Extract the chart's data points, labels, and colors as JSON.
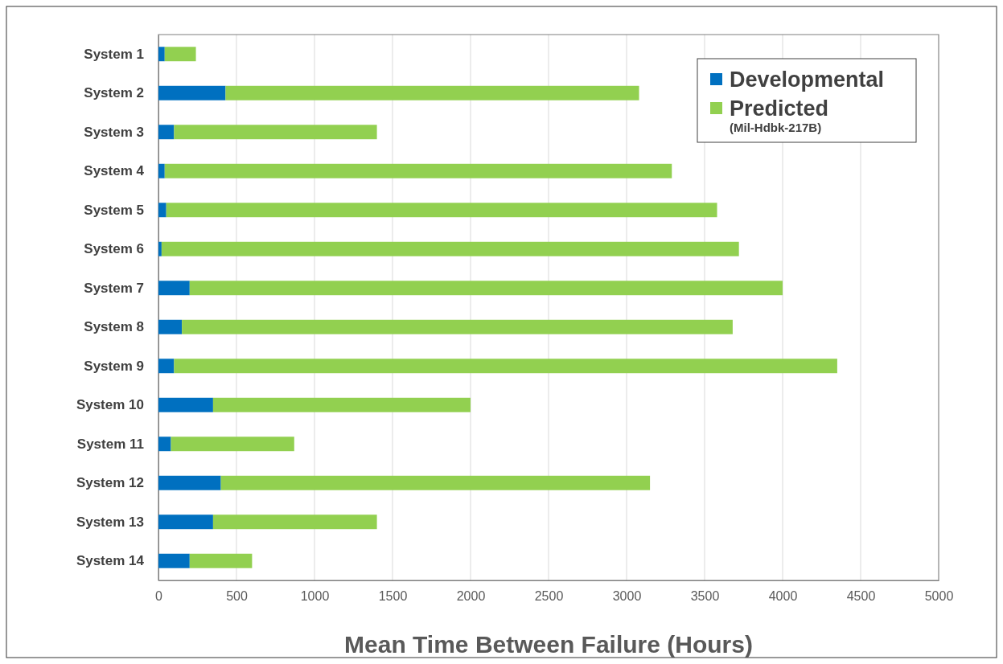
{
  "chart_data": {
    "type": "bar",
    "orientation": "horizontal",
    "stacked": true,
    "xlabel": "Mean Time Between Failure (Hours)",
    "categories": [
      "System 1",
      "System 2",
      "System 3",
      "System 4",
      "System 5",
      "System 6",
      "System 7",
      "System 8",
      "System 9",
      "System 10",
      "System 11",
      "System 12",
      "System 13",
      "System 14"
    ],
    "series": [
      {
        "name": "Developmental",
        "color": "#0070c0",
        "values": [
          40,
          430,
          100,
          40,
          50,
          20,
          200,
          150,
          100,
          350,
          80,
          400,
          350,
          200
        ]
      },
      {
        "name": "Predicted\n(Mil-Hdbk-217B)",
        "color": "#92d050",
        "values": [
          200,
          2650,
          1300,
          3250,
          3530,
          3700,
          3800,
          3530,
          4250,
          1650,
          790,
          2750,
          1050,
          400
        ]
      }
    ],
    "xlim": [
      0,
      5000
    ],
    "xticks": [
      0,
      500,
      1000,
      1500,
      2000,
      2500,
      3000,
      3500,
      4000,
      4500,
      5000
    ],
    "grid": "x",
    "legend": "top right"
  }
}
